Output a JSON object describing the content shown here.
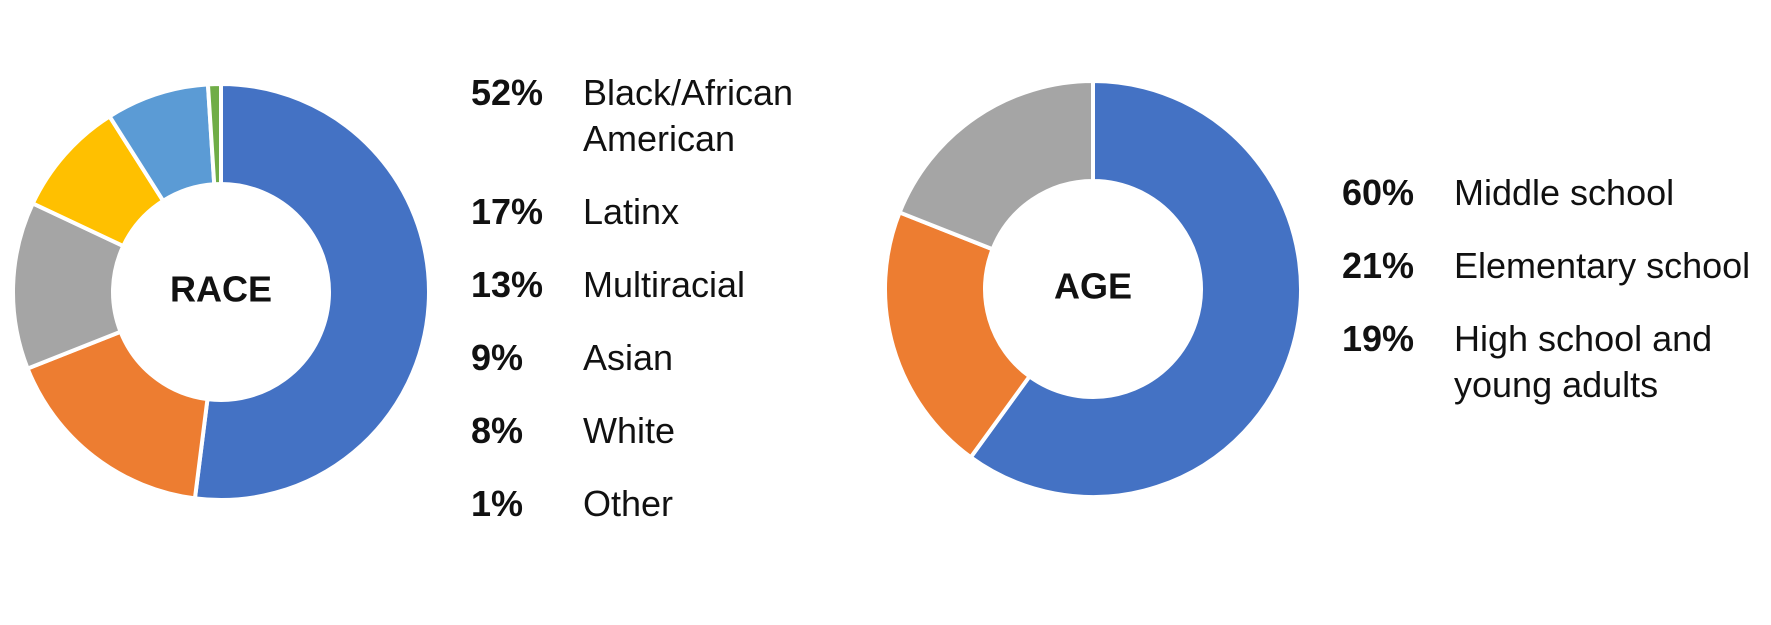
{
  "chart_data": [
    {
      "type": "pie",
      "title": "RACE",
      "categories": [
        "Black/African American",
        "Latinx",
        "Multiracial",
        "Asian",
        "White",
        "Other"
      ],
      "values": [
        52,
        17,
        13,
        9,
        8,
        1
      ],
      "value_labels": [
        "52%",
        "17%",
        "13%",
        "9%",
        "8%",
        "1%"
      ],
      "colors": [
        "#4472c4",
        "#ed7d31",
        "#a5a5a5",
        "#ffc000",
        "#5b9bd5",
        "#70ad47"
      ]
    },
    {
      "type": "pie",
      "title": "AGE",
      "categories": [
        "Middle school",
        "Elementary school",
        "High school and young adults"
      ],
      "values": [
        60,
        21,
        19
      ],
      "value_labels": [
        "60%",
        "21%",
        "19%"
      ],
      "colors": [
        "#4472c4",
        "#ed7d31",
        "#a5a5a5"
      ]
    }
  ]
}
